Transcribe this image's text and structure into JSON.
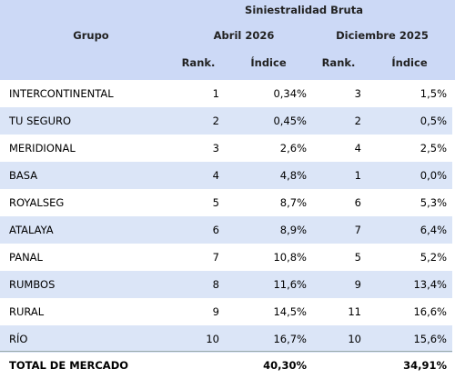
{
  "header": {
    "group_title": "Siniestralidad Bruta",
    "group": "Grupo",
    "periods": [
      "Abril 2026",
      "Diciembre 2025"
    ],
    "columns": [
      "Rank.",
      "Índice",
      "Rank.",
      "Índice"
    ]
  },
  "table": {
    "rows": [
      [
        "INTERCONTINENTAL",
        1,
        "0,34%",
        3,
        "1,5%"
      ],
      [
        "TU SEGURO",
        2,
        "0,45%",
        2,
        "0,5%"
      ],
      [
        "MERIDIONAL",
        3,
        "2,6%",
        4,
        "2,5%"
      ],
      [
        "BASA",
        4,
        "4,8%",
        1,
        "0,0%"
      ],
      [
        "ROYALSEG",
        5,
        "8,7%",
        6,
        "5,3%"
      ],
      [
        "ATALAYA",
        6,
        "8,9%",
        7,
        "6,4%"
      ],
      [
        "PANAL",
        7,
        "10,8%",
        5,
        "5,2%"
      ],
      [
        "RUMBOS",
        8,
        "11,6%",
        9,
        "13,4%"
      ],
      [
        "RURAL",
        9,
        "14,5%",
        11,
        "16,6%"
      ],
      [
        "RÍO",
        10,
        "16,7%",
        10,
        "15,6%"
      ]
    ]
  },
  "total": {
    "label": "TOTAL DE MERCADO",
    "values": [
      "40,30%",
      "34,91%"
    ]
  }
}
